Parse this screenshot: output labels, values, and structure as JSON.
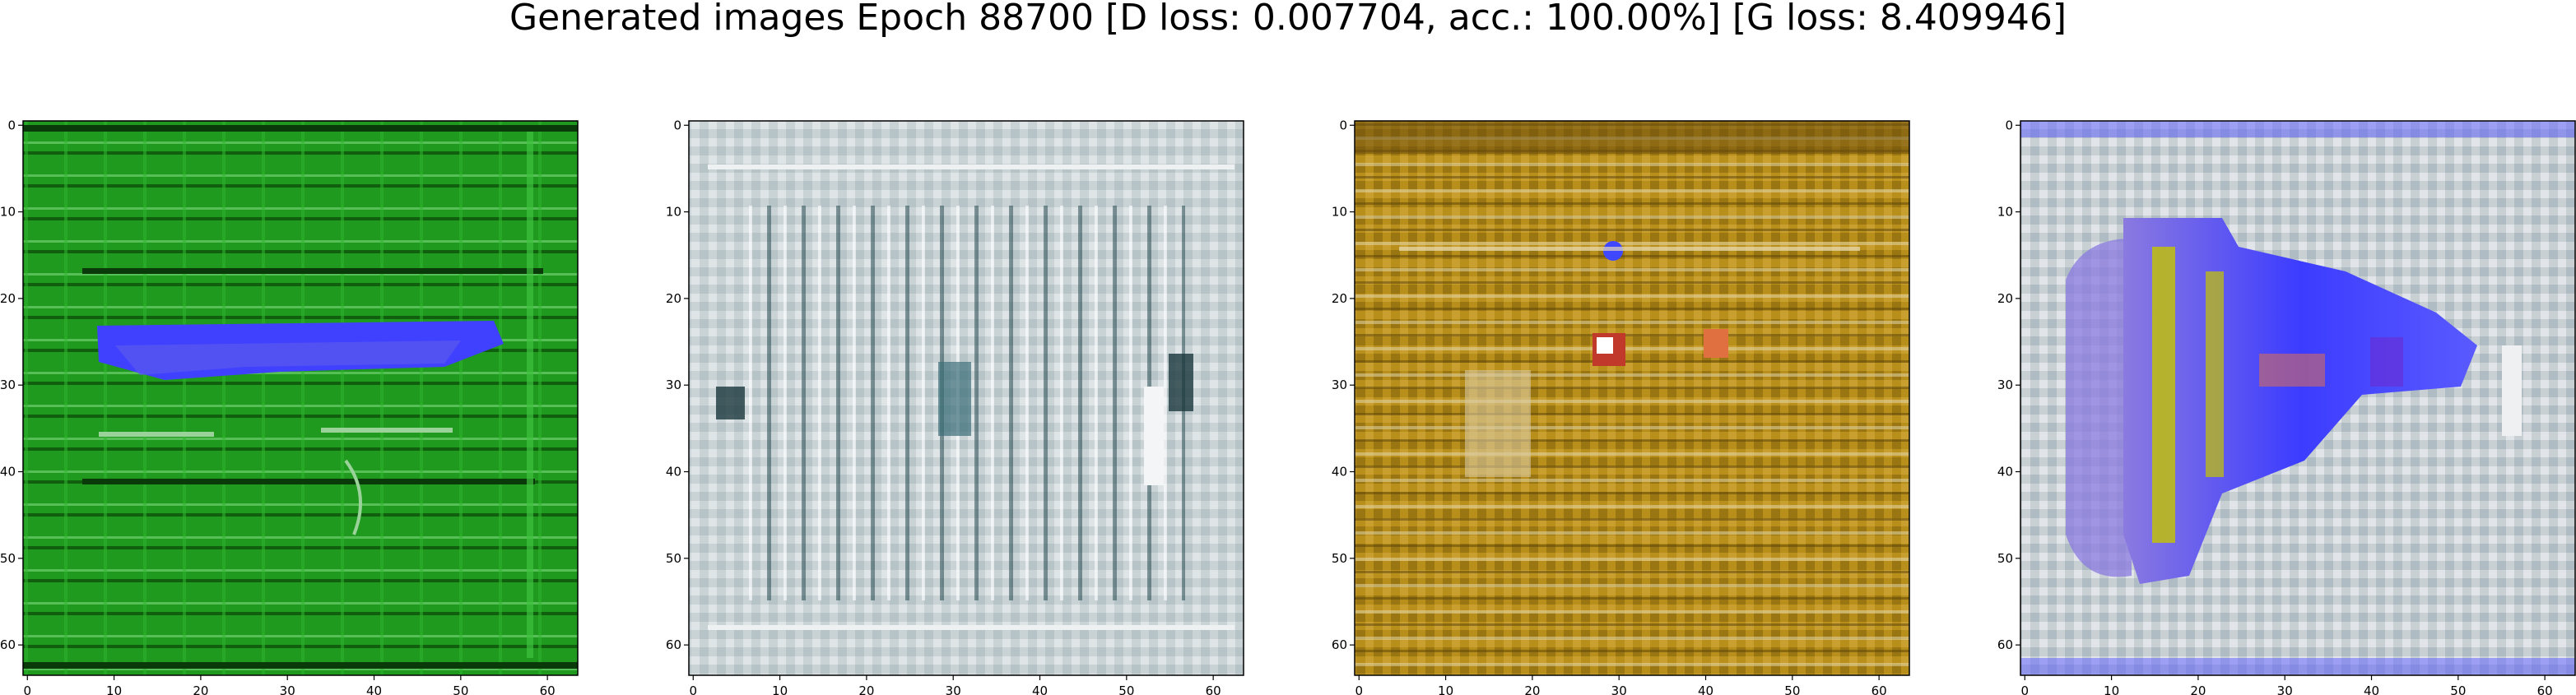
{
  "figure": {
    "title": "Generated images Epoch 88700 [D loss: 0.007704, acc.: 100.00%] [G loss: 8.409946]"
  },
  "chart_data": [
    {
      "type": "heatmap",
      "subject": "generated image 1",
      "dominant_color": "#1f9a1f",
      "accent_colors": [
        "#4040ff",
        "#0a3a0a",
        "#9ad29a"
      ],
      "xlim": [
        0,
        63
      ],
      "ylim": [
        63,
        0
      ],
      "xticks": [
        0,
        10,
        20,
        30,
        40,
        50,
        60
      ],
      "yticks": [
        0,
        10,
        20,
        30,
        40,
        50,
        60
      ],
      "grid": false
    },
    {
      "type": "heatmap",
      "subject": "generated image 2",
      "dominant_color": "#c9d3d6",
      "accent_colors": [
        "#1d3a3f",
        "#e6e9ea",
        "#3a6d78"
      ],
      "xlim": [
        0,
        63
      ],
      "ylim": [
        63,
        0
      ],
      "xticks": [
        0,
        10,
        20,
        30,
        40,
        50,
        60
      ],
      "yticks": [
        0,
        10,
        20,
        30,
        40,
        50,
        60
      ],
      "grid": false
    },
    {
      "type": "heatmap",
      "subject": "generated image 3",
      "dominant_color": "#b88f1a",
      "accent_colors": [
        "#6b4f0c",
        "#d9c9a0",
        "#c0392b",
        "#3f48ff"
      ],
      "xlim": [
        0,
        63
      ],
      "ylim": [
        63,
        0
      ],
      "xticks": [
        0,
        10,
        20,
        30,
        40,
        50,
        60
      ],
      "yticks": [
        0,
        10,
        20,
        30,
        40,
        50,
        60
      ],
      "grid": false
    },
    {
      "type": "heatmap",
      "subject": "generated image 4",
      "dominant_color": "#c8d0d4",
      "accent_colors": [
        "#3c3cff",
        "#c4c400",
        "#6a2bd0",
        "#e8eaee"
      ],
      "xlim": [
        0,
        63
      ],
      "ylim": [
        63,
        0
      ],
      "xticks": [
        0,
        10,
        20,
        30,
        40,
        50,
        60
      ],
      "yticks": [
        0,
        10,
        20,
        30,
        40,
        50,
        60
      ],
      "grid": false
    }
  ]
}
